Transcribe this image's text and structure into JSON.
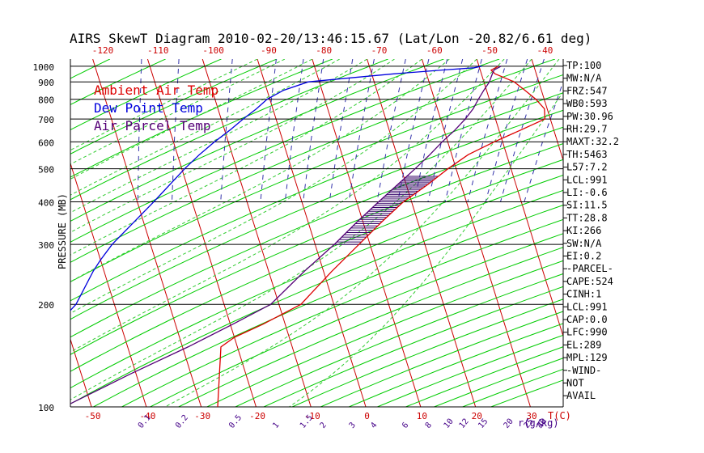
{
  "chart_data": {
    "type": "line",
    "title": "AIRS SkewT Diagram 2010-02-20/13:46:15.67 (Lat/Lon -20.82/6.61 deg)",
    "ylabel": "PRESSURE (MB)",
    "xlabel_bottom_unit": "T(C)",
    "mixing_ratio_unit": "r(g/kg)",
    "y_scale": "log",
    "ylim": [
      1050,
      100
    ],
    "pressure_ticks": [
      100,
      200,
      300,
      400,
      500,
      600,
      700,
      800,
      900,
      1000
    ],
    "temp_ticks_bottom": [
      -50,
      -40,
      -30,
      -20,
      -10,
      0,
      10,
      20,
      30
    ],
    "temp_ticks_top": [
      -120,
      -110,
      -100,
      -90,
      -80,
      -70,
      -60,
      -50,
      -40
    ],
    "mixing_ratio_ticks": [
      "0.1",
      "0.2",
      "0.5",
      "1",
      "1.5",
      "2",
      "3",
      "4",
      "6",
      "8",
      "10",
      "12",
      "15",
      "20",
      "25",
      "30",
      "40"
    ],
    "legend": [
      {
        "label": "Ambient Air Temp",
        "color": "#dd0000"
      },
      {
        "label": "Dew Point Temp",
        "color": "#0000dd"
      },
      {
        "label": "Air Parcel Temp",
        "color": "#550077"
      }
    ],
    "colors": {
      "isotherm": "#cc0000",
      "dry_adiabat": "#00cc00",
      "moist_adiabat": "#33cc33",
      "mixing_ratio": "#3333aa",
      "isobar": "#000000",
      "ambient": "#dd0000",
      "dewpoint": "#0000dd",
      "parcel": "#550077",
      "cape_hatch": "#330066"
    },
    "series": [
      {
        "name": "Ambient Air Temp",
        "points": [
          [
            1000,
            23.5
          ],
          [
            975,
            22.0
          ],
          [
            950,
            22.5
          ],
          [
            925,
            24.0
          ],
          [
            900,
            25.5
          ],
          [
            850,
            27.0
          ],
          [
            800,
            28.5
          ],
          [
            750,
            29.5
          ],
          [
            700,
            29.0
          ],
          [
            650,
            24.0
          ],
          [
            600,
            18.5
          ],
          [
            550,
            13.0
          ],
          [
            500,
            8.5
          ],
          [
            450,
            4.0
          ],
          [
            400,
            -1.5
          ],
          [
            350,
            -6.5
          ],
          [
            300,
            -12.0
          ],
          [
            250,
            -18.5
          ],
          [
            200,
            -26.0
          ],
          [
            175,
            -34.0
          ],
          [
            160,
            -40.0
          ],
          [
            150,
            -43.0
          ],
          [
            100,
            -47.0
          ]
        ]
      },
      {
        "name": "Dew Point Temp",
        "points": [
          [
            1000,
            20.5
          ],
          [
            990,
            19.0
          ],
          [
            975,
            13.0
          ],
          [
            950,
            4.0
          ],
          [
            925,
            -4.0
          ],
          [
            900,
            -12.0
          ],
          [
            850,
            -17.0
          ],
          [
            800,
            -20.5
          ],
          [
            750,
            -23.0
          ],
          [
            700,
            -26.0
          ],
          [
            650,
            -29.0
          ],
          [
            600,
            -32.5
          ],
          [
            550,
            -36.0
          ],
          [
            500,
            -39.5
          ],
          [
            400,
            -47.0
          ],
          [
            300,
            -57.0
          ],
          [
            270,
            -60.0
          ],
          [
            250,
            -62.0
          ],
          [
            200,
            -67.0
          ],
          [
            180,
            -70.5
          ],
          [
            160,
            -74.0
          ],
          [
            150,
            -76.0
          ],
          [
            100,
            -84.0
          ]
        ]
      },
      {
        "name": "Air Parcel Temp",
        "points": [
          [
            1000,
            24.0
          ],
          [
            975,
            22.5
          ],
          [
            950,
            22.0
          ],
          [
            925,
            21.5
          ],
          [
            900,
            21.0
          ],
          [
            850,
            19.5
          ],
          [
            800,
            18.0
          ],
          [
            750,
            16.5
          ],
          [
            700,
            14.5
          ],
          [
            650,
            12.0
          ],
          [
            600,
            9.0
          ],
          [
            550,
            6.0
          ],
          [
            500,
            2.5
          ],
          [
            450,
            -1.5
          ],
          [
            400,
            -6.0
          ],
          [
            350,
            -11.0
          ],
          [
            300,
            -16.5
          ],
          [
            250,
            -23.5
          ],
          [
            200,
            -31.5
          ],
          [
            175,
            -39.5
          ],
          [
            150,
            -49.0
          ],
          [
            125,
            -61.0
          ],
          [
            100,
            -75.0
          ]
        ]
      }
    ],
    "indices": [
      "TP:100",
      "MW:N/A",
      "FRZ:547",
      "WB0:593",
      "PW:30.96",
      "RH:29.7",
      "MAXT:32.2",
      "TH:5463",
      "L57:7.2",
      "LCL:991",
      "LI:-0.6",
      "SI:11.5",
      "TT:28.8",
      "KI:266",
      "SW:N/A",
      "EI:0.2",
      "-PARCEL-",
      "CAPE:524",
      "CINH:1",
      "LCL:991",
      "CAP:0.0",
      "LFC:990",
      "EL:289",
      "MPL:129",
      "-WIND-",
      "NOT",
      "AVAIL"
    ]
  }
}
